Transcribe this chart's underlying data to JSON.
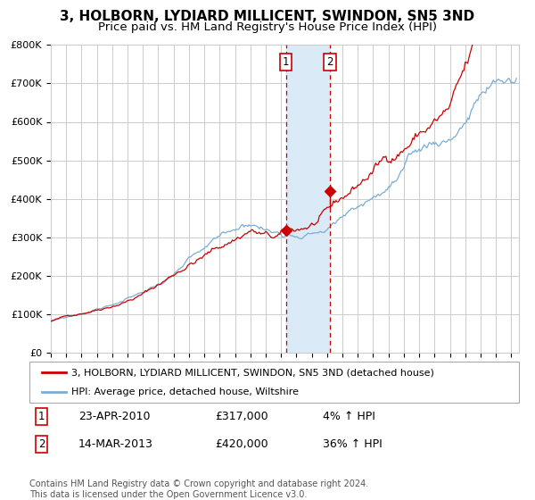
{
  "title": "3, HOLBORN, LYDIARD MILLICENT, SWINDON, SN5 3ND",
  "subtitle": "Price paid vs. HM Land Registry's House Price Index (HPI)",
  "ylim": [
    0,
    800000
  ],
  "yticks": [
    0,
    100000,
    200000,
    300000,
    400000,
    500000,
    600000,
    700000,
    800000
  ],
  "ytick_labels": [
    "£0",
    "£100K",
    "£200K",
    "£300K",
    "£400K",
    "£500K",
    "£600K",
    "£700K",
    "£800K"
  ],
  "xlim_start": 1995.0,
  "xlim_end": 2025.5,
  "red_line_color": "#cc0000",
  "blue_line_color": "#7aadd4",
  "grid_color": "#cccccc",
  "shade_color": "#daeaf7",
  "vline_color": "#cc0000",
  "transaction1": {
    "date_num": 2010.31,
    "price": 317000,
    "label": "1",
    "date_str": "23-APR-2010",
    "pct": "4%"
  },
  "transaction2": {
    "date_num": 2013.19,
    "price": 420000,
    "label": "2",
    "date_str": "14-MAR-2013",
    "pct": "36%"
  },
  "legend_red": "3, HOLBORN, LYDIARD MILLICENT, SWINDON, SN5 3ND (detached house)",
  "legend_blue": "HPI: Average price, detached house, Wiltshire",
  "footer": "Contains HM Land Registry data © Crown copyright and database right 2024.\nThis data is licensed under the Open Government Licence v3.0.",
  "title_fontsize": 11,
  "subtitle_fontsize": 9.5,
  "axis_fontsize": 8.5,
  "tick_fontsize": 8
}
